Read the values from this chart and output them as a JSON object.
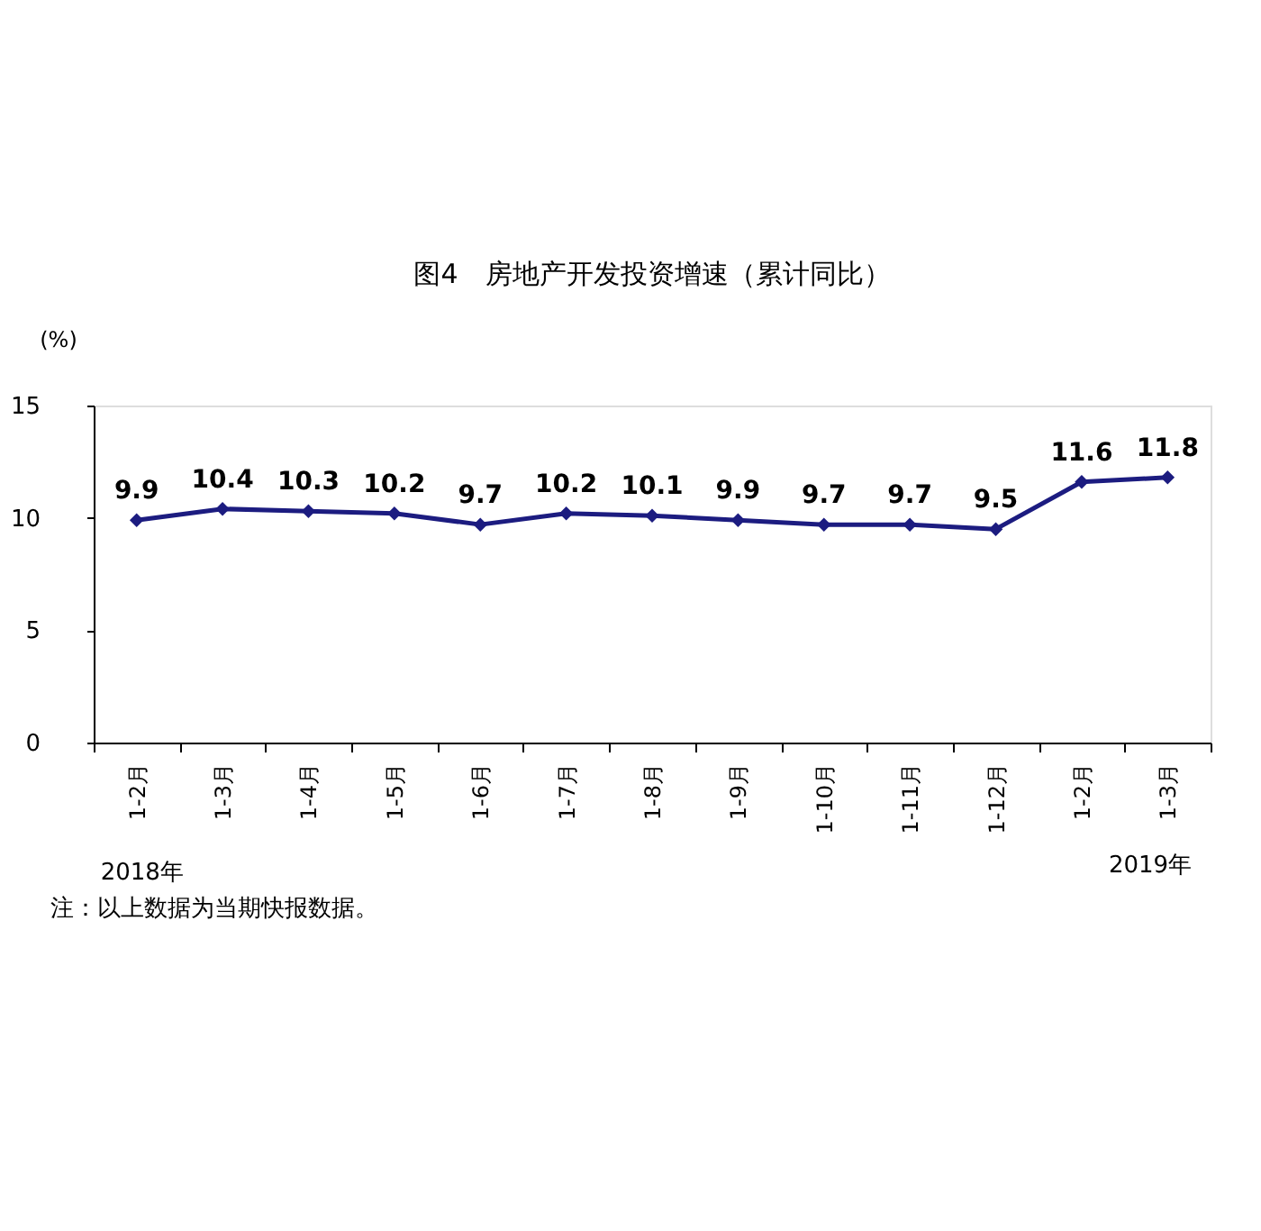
{
  "chart_data": {
    "type": "line",
    "title": "图4　房地产开发投资增速（累计同比）",
    "ylabel": "(%)",
    "categories": [
      "1-2月",
      "1-3月",
      "1-4月",
      "1-5月",
      "1-6月",
      "1-7月",
      "1-8月",
      "1-9月",
      "1-10月",
      "1-11月",
      "1-12月",
      "1-2月",
      "1-3月"
    ],
    "series": [
      {
        "color": "#1c1c80",
        "values": [
          9.9,
          10.4,
          10.3,
          10.2,
          9.7,
          10.2,
          10.1,
          9.9,
          9.7,
          9.7,
          9.5,
          11.6,
          11.8
        ]
      }
    ],
    "ylim": [
      0,
      15
    ],
    "yticks": [
      0,
      5,
      10,
      15
    ],
    "data_labels": true,
    "marker": "diamond",
    "grid": false,
    "annotations": [
      "2018年",
      "2019年",
      "注：以上数据为当期快报数据。"
    ]
  }
}
